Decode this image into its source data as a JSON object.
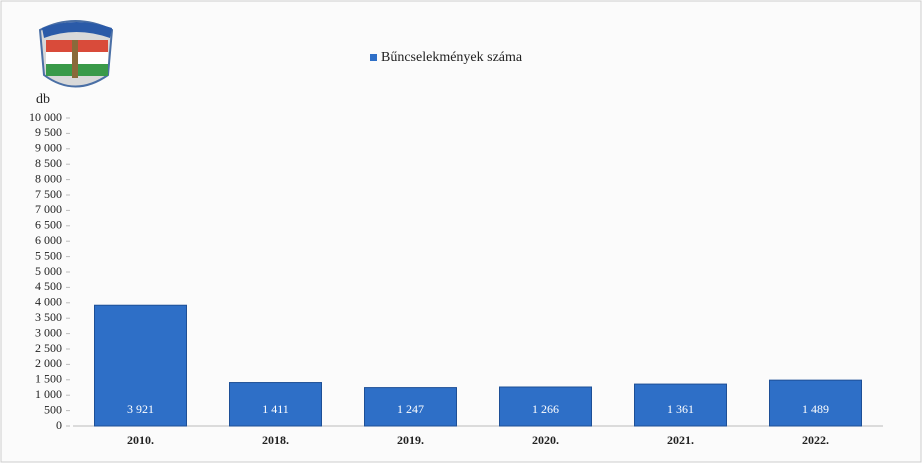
{
  "chart_data": {
    "type": "bar",
    "y_label": "db",
    "categories": [
      "2010.",
      "2018.",
      "2019.",
      "2020.",
      "2021.",
      "2022."
    ],
    "series": [
      {
        "name": "Bűncselekmények száma",
        "color": "#2e6fc7",
        "values": [
          3921,
          1411,
          1247,
          1266,
          1361,
          1489
        ],
        "value_labels": [
          "3 921",
          "1 411",
          "1 247",
          "1 266",
          "1 361",
          "1 489"
        ]
      }
    ],
    "ylim": [
      0,
      10000
    ],
    "yticks": [
      0,
      500,
      {
        "value": 1000,
        "label": "1 000"
      },
      {
        "value": 1500,
        "label": "1 500"
      },
      {
        "value": 2000,
        "label": "2 000"
      },
      {
        "value": 2500,
        "label": "2 500"
      },
      {
        "value": 3000,
        "label": "3 000"
      },
      {
        "value": 3500,
        "label": "3 500"
      },
      {
        "value": 4000,
        "label": "4 000"
      },
      {
        "value": 4500,
        "label": "4 500"
      },
      {
        "value": 5000,
        "label": "5 000"
      },
      {
        "value": 5500,
        "label": "5 500"
      },
      {
        "value": 6000,
        "label": "6 000"
      },
      {
        "value": 6500,
        "label": "6 500"
      },
      {
        "value": 7000,
        "label": "7 000"
      },
      {
        "value": 7500,
        "label": "7 500"
      },
      {
        "value": 8000,
        "label": "8 000"
      },
      {
        "value": 8500,
        "label": "8 500"
      },
      {
        "value": 9000,
        "label": "9 000"
      },
      {
        "value": 9500,
        "label": "9 500"
      },
      {
        "value": 10000,
        "label": "10 000"
      }
    ],
    "grid": false,
    "legend": "top"
  }
}
